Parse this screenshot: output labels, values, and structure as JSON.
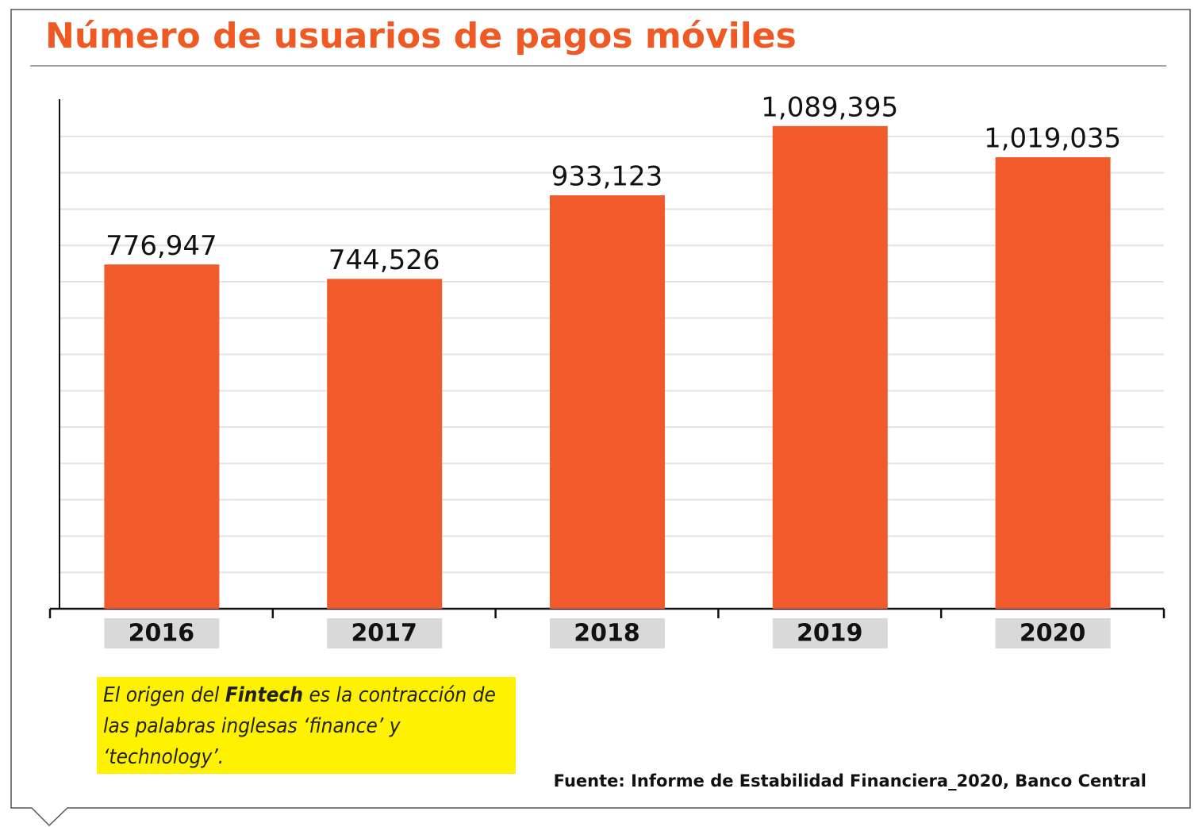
{
  "chart_data": {
    "type": "bar",
    "title": "Número de usuarios de pagos móviles",
    "categories": [
      "2016",
      "2017",
      "2018",
      "2019",
      "2020"
    ],
    "values": [
      776947,
      744526,
      933123,
      1089395,
      1019035
    ],
    "value_labels": [
      "776,947",
      "744,526",
      "933,123",
      "1,089,395",
      "1,019,035"
    ],
    "color": "#f15a2b",
    "ylim": [
      0,
      1150000
    ],
    "yticks": [
      0,
      82000,
      164000,
      246000,
      328000,
      410000,
      492000,
      574000,
      656000,
      738000,
      820000,
      902000,
      984000,
      1066000
    ],
    "grid": true,
    "note": {
      "before": "El origen del ",
      "bold": "Fintech",
      "after": " es la contracción de las palabras inglesas ‘finance’ y ‘technology’."
    },
    "source": "Fuente: Informe de Estabilidad Financiera_2020, Banco Central"
  }
}
